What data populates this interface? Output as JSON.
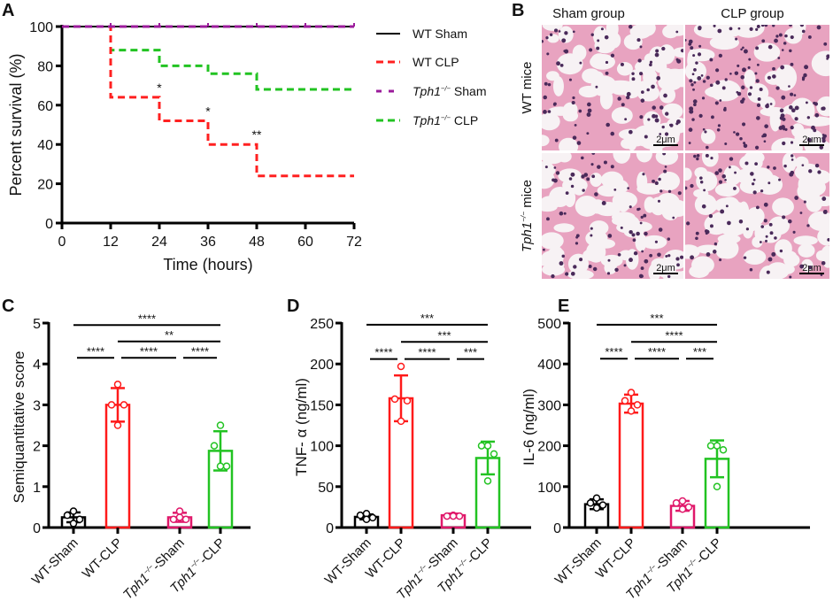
{
  "panel_labels": {
    "a": "A",
    "b": "B",
    "c": "C",
    "d": "D",
    "e": "E"
  },
  "histology": {
    "columns": [
      "Sham group",
      "CLP group"
    ],
    "rows": [
      {
        "italic": "",
        "sup": "",
        "rest": "WT mice"
      },
      {
        "italic": "Tph1",
        "sup": "−/−",
        "rest": " mice"
      }
    ],
    "scale_bar_label": "2μm",
    "colors": {
      "tissue": "#e8a3c0",
      "nuclei": "#4a2a5a",
      "airspace": "#f7f2f4"
    }
  },
  "chart_data": [
    {
      "type": "line",
      "subtype": "kaplan-meier-step",
      "xlabel": "Time (hours)",
      "ylabel": "Percent survival (%)",
      "xlim": [
        0,
        72
      ],
      "ylim": [
        0,
        100
      ],
      "xticks": [
        0,
        12,
        24,
        36,
        48,
        60,
        72
      ],
      "yticks": [
        0,
        20,
        40,
        60,
        80,
        100
      ],
      "legend_position": "right",
      "series": [
        {
          "name": "WT Sham",
          "name_parts": {
            "italic": "",
            "sup": "",
            "rest": "WT Sham"
          },
          "color": "#000000",
          "style": "solid",
          "x": [
            0,
            72
          ],
          "y": [
            100,
            100
          ]
        },
        {
          "name": "WT CLP",
          "name_parts": {
            "italic": "",
            "sup": "",
            "rest": "WT CLP"
          },
          "color": "#ff2020",
          "style": "dashed",
          "x": [
            0,
            12,
            24,
            36,
            48,
            72
          ],
          "y": [
            100,
            64,
            52,
            40,
            24,
            24
          ]
        },
        {
          "name": "Tph1−/− Sham",
          "name_parts": {
            "italic": "Tph1",
            "sup": "−/−",
            "rest": " Sham"
          },
          "color": "#9b1b9b",
          "style": "dashed-ticks",
          "x": [
            0,
            72
          ],
          "y": [
            100,
            100
          ]
        },
        {
          "name": "Tph1−/− CLP",
          "name_parts": {
            "italic": "Tph1",
            "sup": "−/−",
            "rest": " CLP"
          },
          "color": "#22c322",
          "style": "dashed",
          "x": [
            0,
            12,
            24,
            36,
            48,
            72
          ],
          "y": [
            100,
            88,
            80,
            76,
            68,
            68
          ]
        }
      ],
      "annotations": [
        {
          "x": 24,
          "y": 64,
          "text": "*"
        },
        {
          "x": 36,
          "y": 52,
          "text": "*"
        },
        {
          "x": 48,
          "y": 40,
          "text": "**"
        }
      ]
    },
    {
      "type": "bar",
      "ylabel": "Semiquantitative score",
      "ylim": [
        0,
        5
      ],
      "yticks": [
        0,
        1,
        2,
        3,
        4,
        5
      ],
      "categories": [
        {
          "italic": "",
          "sup": "",
          "rest": "WT-Sham"
        },
        {
          "italic": "",
          "sup": "",
          "rest": "WT-CLP"
        },
        {
          "italic": "Tph1",
          "sup": "−/−",
          "rest": "-Sham"
        },
        {
          "italic": "Tph1",
          "sup": "−/−",
          "rest": "-CLP"
        }
      ],
      "colors": [
        "#000000",
        "#ff1a1a",
        "#e0186a",
        "#22c322"
      ],
      "values": [
        0.25,
        3.0,
        0.25,
        1.875
      ],
      "sd": [
        0.12,
        0.41,
        0.11,
        0.48
      ],
      "points": [
        [
          0.4,
          0.3,
          0.2,
          0.1
        ],
        [
          3.5,
          3.0,
          3.0,
          2.5
        ],
        [
          0.4,
          0.2,
          0.2,
          0.25
        ],
        [
          2.5,
          2.0,
          1.5,
          1.5
        ]
      ],
      "significance": [
        {
          "from": 0,
          "to": 3,
          "y": 4.95,
          "text": "****"
        },
        {
          "from": 1,
          "to": 3,
          "y": 4.55,
          "text": "**"
        },
        {
          "from": 0,
          "to": 1,
          "y": 4.15,
          "text": "****"
        },
        {
          "from": 1,
          "to": 2,
          "y": 4.15,
          "text": "****"
        },
        {
          "from": 2,
          "to": 3,
          "y": 4.15,
          "text": "****"
        }
      ]
    },
    {
      "type": "bar",
      "ylabel": "TNF- α (ng/ml)",
      "ylim": [
        0,
        250
      ],
      "yticks": [
        0,
        50,
        100,
        150,
        200,
        250
      ],
      "categories": [
        {
          "italic": "",
          "sup": "",
          "rest": "WT-Sham"
        },
        {
          "italic": "",
          "sup": "",
          "rest": "WT-CLP"
        },
        {
          "italic": "Tph1",
          "sup": "−/−",
          "rest": "-Sham"
        },
        {
          "italic": "Tph1",
          "sup": "−/−",
          "rest": "-CLP"
        }
      ],
      "colors": [
        "#000000",
        "#ff1a1a",
        "#e0186a",
        "#22c322"
      ],
      "values": [
        13,
        158,
        15,
        85
      ],
      "sd": [
        3,
        28,
        2,
        20
      ],
      "points": [
        [
          17,
          15,
          12,
          10
        ],
        [
          197,
          157,
          155,
          130
        ],
        [
          15,
          14,
          14,
          14
        ],
        [
          100,
          100,
          90,
          57
        ]
      ],
      "significance": [
        {
          "from": 0,
          "to": 3,
          "y": 248,
          "text": "***"
        },
        {
          "from": 1,
          "to": 3,
          "y": 227,
          "text": "***"
        },
        {
          "from": 0,
          "to": 1,
          "y": 206,
          "text": "****"
        },
        {
          "from": 1,
          "to": 2,
          "y": 206,
          "text": "****"
        },
        {
          "from": 2,
          "to": 3,
          "y": 206,
          "text": "***"
        }
      ]
    },
    {
      "type": "bar",
      "ylabel": "IL-6 (ng/ml)",
      "ylim": [
        0,
        500
      ],
      "yticks": [
        0,
        100,
        200,
        300,
        400,
        500
      ],
      "categories": [
        {
          "italic": "",
          "sup": "",
          "rest": "WT-Sham"
        },
        {
          "italic": "",
          "sup": "",
          "rest": "WT-CLP"
        },
        {
          "italic": "Tph1",
          "sup": "−/−",
          "rest": "-Sham"
        },
        {
          "italic": "Tph1",
          "sup": "−/−",
          "rest": "-CLP"
        }
      ],
      "colors": [
        "#000000",
        "#ff1a1a",
        "#e0186a",
        "#22c322"
      ],
      "values": [
        57,
        303,
        53,
        168
      ],
      "sd": [
        12,
        22,
        12,
        45
      ],
      "points": [
        [
          72,
          60,
          55,
          48
        ],
        [
          330,
          310,
          300,
          285
        ],
        [
          65,
          60,
          50,
          45
        ],
        [
          200,
          200,
          190,
          100
        ]
      ],
      "significance": [
        {
          "from": 0,
          "to": 3,
          "y": 496,
          "text": "***"
        },
        {
          "from": 1,
          "to": 3,
          "y": 454,
          "text": "****"
        },
        {
          "from": 0,
          "to": 1,
          "y": 413,
          "text": "****"
        },
        {
          "from": 1,
          "to": 2,
          "y": 413,
          "text": "****"
        },
        {
          "from": 2,
          "to": 3,
          "y": 413,
          "text": "***"
        }
      ]
    }
  ]
}
